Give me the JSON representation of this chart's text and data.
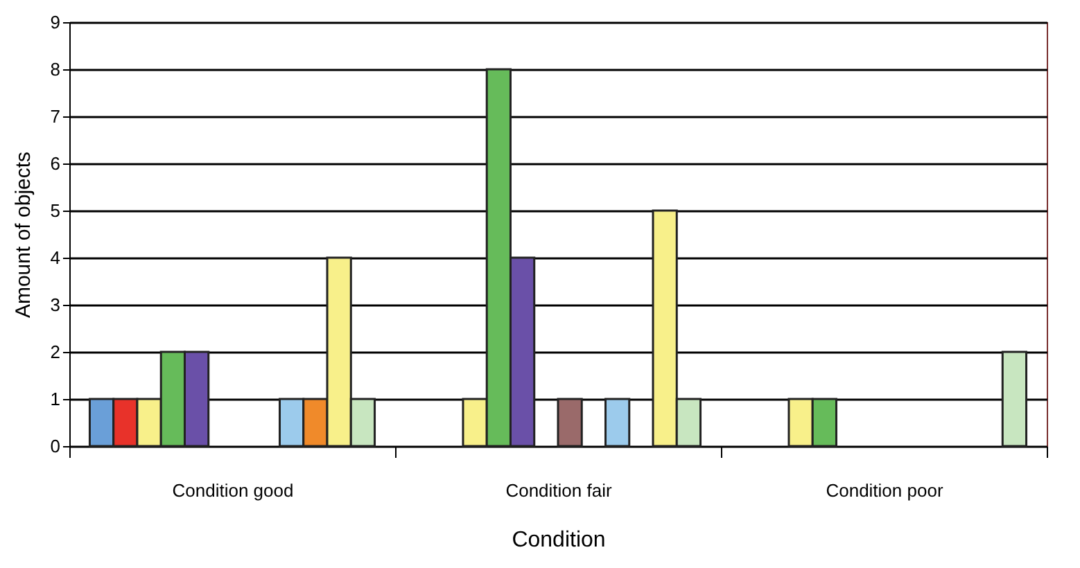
{
  "chart_data": {
    "type": "bar",
    "xlabel": "Condition",
    "ylabel": "Amount of objects",
    "categories": [
      "Condition good",
      "Condition fair",
      "Condition poor"
    ],
    "series": [
      {
        "color": "#6a9fd8",
        "values": [
          1,
          null,
          null
        ]
      },
      {
        "color": "#e8322a",
        "values": [
          1,
          null,
          null
        ]
      },
      {
        "color": "#f8f08a",
        "values": [
          1,
          1,
          1
        ]
      },
      {
        "color": "#66bb5a",
        "values": [
          2,
          8,
          1
        ]
      },
      {
        "color": "#6a50a8",
        "values": [
          2,
          4,
          null
        ]
      },
      {
        "color": "#d0d0d0",
        "values": [
          null,
          null,
          null
        ]
      },
      {
        "color": "#9a6a6a",
        "values": [
          null,
          1,
          null
        ]
      },
      {
        "color": "#d0d0d0",
        "values": [
          null,
          null,
          null
        ]
      },
      {
        "color": "#9ccbec",
        "values": [
          1,
          1,
          null
        ]
      },
      {
        "color": "#f08a2a",
        "values": [
          1,
          null,
          null
        ]
      },
      {
        "color": "#f8f08a",
        "values": [
          4,
          5,
          null
        ]
      },
      {
        "color": "#c8e6c0",
        "values": [
          1,
          1,
          2
        ]
      }
    ],
    "ylim": [
      0,
      9
    ],
    "yticks": [
      0,
      1,
      2,
      3,
      4,
      5,
      6,
      7,
      8,
      9
    ],
    "grid": "y",
    "legend": false
  }
}
